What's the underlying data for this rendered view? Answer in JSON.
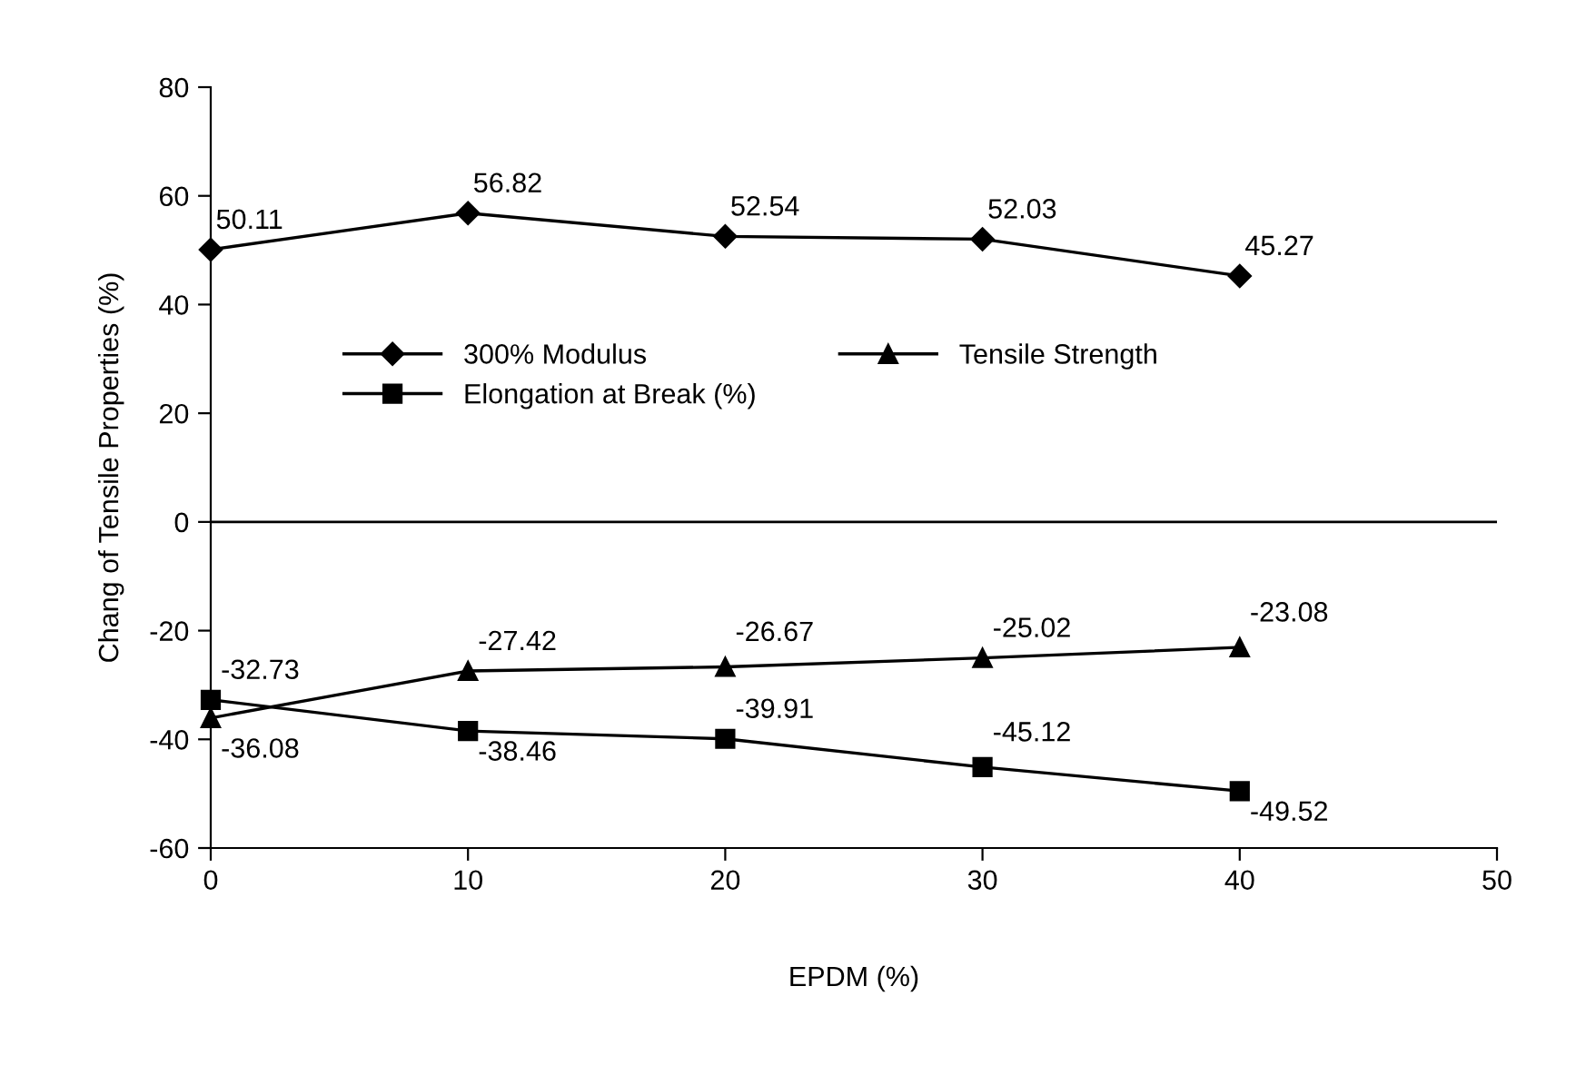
{
  "chart_data": {
    "type": "line",
    "xlabel": "EPDM (%)",
    "ylabel": "Chang of Tensile Properties (%)",
    "x": [
      0,
      10,
      20,
      30,
      40
    ],
    "series": [
      {
        "name": "300% Modulus",
        "color": "#000000",
        "marker": "diamond",
        "values": [
          50.11,
          56.82,
          52.54,
          52.03,
          45.27
        ]
      },
      {
        "name": "Elongation at Break (%)",
        "color": "#000000",
        "marker": "square",
        "values": [
          -32.73,
          -38.46,
          -39.91,
          -45.12,
          -49.52
        ]
      },
      {
        "name": "Tensile Strength",
        "color": "#000000",
        "marker": "triangle",
        "values": [
          -36.08,
          -27.42,
          -26.67,
          -25.02,
          -23.08
        ]
      }
    ],
    "xlim": [
      0,
      50
    ],
    "xticks": [
      0,
      10,
      20,
      30,
      40,
      50
    ],
    "ylim": [
      -60,
      80
    ],
    "yticks": [
      -60,
      -40,
      -20,
      0,
      20,
      40,
      60,
      80
    ],
    "ref_lines": [
      {
        "axis": "y",
        "value": 0,
        "color": "#000000"
      }
    ],
    "data_labels": true,
    "grid": false,
    "legend": "center",
    "line_style": "solid"
  }
}
